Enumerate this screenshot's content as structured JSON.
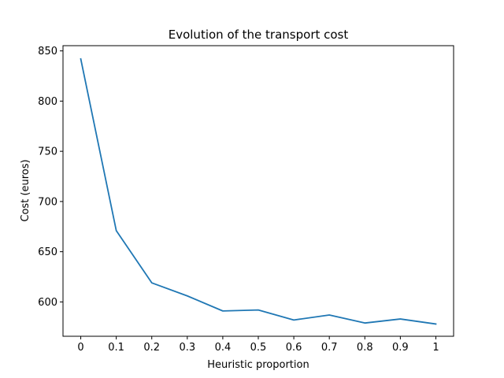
{
  "chart_data": {
    "type": "line",
    "title": "Evolution of the transport cost",
    "xlabel": "Heuristic proportion",
    "ylabel": "Cost (euros)",
    "x": [
      0,
      0.1,
      0.2,
      0.3,
      0.4,
      0.5,
      0.6,
      0.7,
      0.8,
      0.9,
      1
    ],
    "x_tick_labels": [
      "0",
      "0.1",
      "0.2",
      "0.3",
      "0.4",
      "0.5",
      "0.6",
      "0.7",
      "0.8",
      "0.9",
      "1"
    ],
    "y_ticks": [
      600,
      650,
      700,
      750,
      800,
      850
    ],
    "series": [
      {
        "values": [
          842,
          671,
          619,
          606,
          591,
          592,
          582,
          587,
          579,
          583,
          578
        ],
        "color": "#1f77b4"
      }
    ],
    "xlim": [
      -0.05,
      1.05
    ],
    "ylim": [
      565.8,
      855.2
    ],
    "grid": false,
    "legend": "none"
  }
}
